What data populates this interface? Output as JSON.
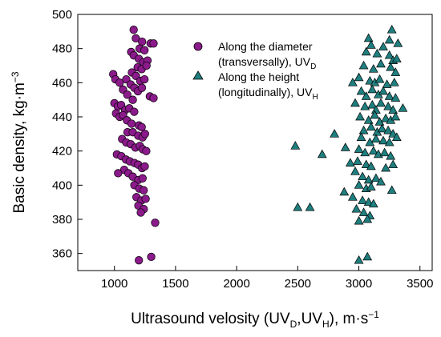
{
  "chart_data": {
    "type": "scatter",
    "xlim": [
      700,
      3600
    ],
    "ylim": [
      350,
      500
    ],
    "x_ticks": [
      1000,
      1500,
      2000,
      2500,
      3000,
      3500
    ],
    "y_ticks": [
      360,
      380,
      400,
      420,
      440,
      460,
      480,
      500
    ],
    "grid": false,
    "legend_position": "top-right",
    "xlabel": {
      "prefix": "Ultrasound velosity (UV",
      "sub1": "D",
      "sep": ",UV",
      "sub2": "H",
      "suffix": "), m·s",
      "sup": "−1"
    },
    "ylabel": {
      "prefix": "Basic density, kg·m",
      "sup": "−3"
    },
    "series": [
      {
        "name_lines": [
          "Along the diameter",
          "(transversally), UV"
        ],
        "name_sub": "D",
        "marker": "circle",
        "color": "#8B1A8B",
        "points": [
          [
            1157,
            491
          ],
          [
            1175,
            486
          ],
          [
            1226,
            484
          ],
          [
            1206,
            480
          ],
          [
            1246,
            479
          ],
          [
            1296,
            483
          ],
          [
            1320,
            483
          ],
          [
            1137,
            478
          ],
          [
            1158,
            476
          ],
          [
            1200,
            474
          ],
          [
            1236,
            472
          ],
          [
            1271,
            473
          ],
          [
            1190,
            469
          ],
          [
            1223,
            468
          ],
          [
            1262,
            470
          ],
          [
            1143,
            466
          ],
          [
            1176,
            464
          ],
          [
            1211,
            461
          ],
          [
            1246,
            462
          ],
          [
            990,
            465
          ],
          [
            1008,
            462
          ],
          [
            1043,
            460
          ],
          [
            1097,
            462
          ],
          [
            1133,
            459
          ],
          [
            1163,
            457
          ],
          [
            1192,
            455
          ],
          [
            1225,
            457
          ],
          [
            1070,
            456
          ],
          [
            1105,
            453
          ],
          [
            1150,
            450
          ],
          [
            1290,
            452
          ],
          [
            1320,
            451
          ],
          [
            1000,
            448
          ],
          [
            1028,
            446
          ],
          [
            1055,
            447
          ],
          [
            1088,
            444
          ],
          [
            1122,
            445
          ],
          [
            1162,
            443
          ],
          [
            1013,
            442
          ],
          [
            1043,
            440
          ],
          [
            1071,
            441
          ],
          [
            1102,
            438
          ],
          [
            1140,
            436
          ],
          [
            1200,
            435
          ],
          [
            1223,
            434
          ],
          [
            1107,
            431
          ],
          [
            1150,
            431
          ],
          [
            1195,
            429
          ],
          [
            1230,
            428
          ],
          [
            1250,
            430
          ],
          [
            1063,
            427
          ],
          [
            1097,
            425
          ],
          [
            1133,
            424
          ],
          [
            1172,
            422
          ],
          [
            1208,
            423
          ],
          [
            1232,
            421
          ],
          [
            1260,
            420
          ],
          [
            1020,
            418
          ],
          [
            1057,
            417
          ],
          [
            1094,
            415
          ],
          [
            1126,
            414
          ],
          [
            1164,
            413
          ],
          [
            1195,
            412
          ],
          [
            1226,
            410
          ],
          [
            1248,
            411
          ],
          [
            1080,
            409
          ],
          [
            1030,
            407
          ],
          [
            1114,
            407
          ],
          [
            1150,
            405
          ],
          [
            1195,
            403
          ],
          [
            1230,
            404
          ],
          [
            1163,
            400
          ],
          [
            1203,
            398
          ],
          [
            1239,
            397
          ],
          [
            1180,
            393
          ],
          [
            1220,
            391
          ],
          [
            1255,
            392
          ],
          [
            1196,
            388
          ],
          [
            1240,
            386
          ],
          [
            1216,
            384
          ],
          [
            1333,
            378
          ],
          [
            1200,
            356
          ],
          [
            1301,
            358
          ]
        ]
      },
      {
        "name_lines": [
          "Along the height",
          "(longitudinally), UV"
        ],
        "name_sub": "H",
        "marker": "triangle",
        "color": "#1F7F7F",
        "points": [
          [
            3270,
            491
          ],
          [
            3080,
            486
          ],
          [
            3250,
            485
          ],
          [
            3100,
            482
          ],
          [
            3200,
            481
          ],
          [
            3320,
            483
          ],
          [
            3060,
            478
          ],
          [
            3150,
            477
          ],
          [
            3250,
            476
          ],
          [
            3280,
            473
          ],
          [
            3310,
            474
          ],
          [
            3040,
            470
          ],
          [
            3120,
            468
          ],
          [
            3180,
            471
          ],
          [
            3260,
            469
          ],
          [
            3300,
            466
          ],
          [
            3000,
            463
          ],
          [
            3090,
            461
          ],
          [
            3130,
            460
          ],
          [
            3170,
            462
          ],
          [
            3230,
            459
          ],
          [
            3290,
            460
          ],
          [
            2950,
            460
          ],
          [
            3020,
            455
          ],
          [
            3060,
            452
          ],
          [
            3110,
            456
          ],
          [
            3160,
            453
          ],
          [
            3200,
            455
          ],
          [
            3250,
            452
          ],
          [
            3300,
            451
          ],
          [
            2970,
            448
          ],
          [
            3050,
            446
          ],
          [
            3110,
            447
          ],
          [
            3140,
            444
          ],
          [
            3180,
            448
          ],
          [
            3240,
            446
          ],
          [
            3280,
            444
          ],
          [
            3360,
            445
          ],
          [
            3010,
            440
          ],
          [
            3080,
            438
          ],
          [
            3130,
            441
          ],
          [
            3170,
            437
          ],
          [
            3220,
            439
          ],
          [
            3260,
            438
          ],
          [
            3300,
            440
          ],
          [
            3040,
            432
          ],
          [
            3100,
            434
          ],
          [
            3150,
            431
          ],
          [
            3190,
            433
          ],
          [
            3240,
            432
          ],
          [
            3280,
            430
          ],
          [
            2800,
            430
          ],
          [
            3020,
            428
          ],
          [
            3090,
            425
          ],
          [
            3140,
            427
          ],
          [
            3200,
            426
          ],
          [
            3250,
            425
          ],
          [
            3310,
            428
          ],
          [
            2890,
            422
          ],
          [
            3000,
            421
          ],
          [
            3050,
            419
          ],
          [
            3120,
            420
          ],
          [
            3160,
            418
          ],
          [
            3210,
            419
          ],
          [
            3260,
            417
          ],
          [
            2990,
            414
          ],
          [
            2930,
            413
          ],
          [
            3060,
            412
          ],
          [
            3100,
            411
          ],
          [
            3220,
            410
          ],
          [
            3280,
            412
          ],
          [
            2970,
            408
          ],
          [
            3030,
            405
          ],
          [
            3080,
            403
          ],
          [
            3140,
            404
          ],
          [
            3180,
            402
          ],
          [
            3000,
            400
          ],
          [
            3060,
            398
          ],
          [
            3100,
            399
          ],
          [
            2880,
            396
          ],
          [
            3270,
            397
          ],
          [
            2950,
            393
          ],
          [
            3030,
            391
          ],
          [
            3080,
            390
          ],
          [
            3120,
            389
          ],
          [
            2980,
            386
          ],
          [
            3040,
            384
          ],
          [
            3090,
            382
          ],
          [
            3070,
            380
          ],
          [
            3000,
            379
          ],
          [
            2700,
            418
          ],
          [
            2480,
            423
          ],
          [
            2500,
            387
          ],
          [
            2600,
            387
          ],
          [
            3000,
            356
          ],
          [
            3070,
            358
          ]
        ]
      }
    ]
  }
}
